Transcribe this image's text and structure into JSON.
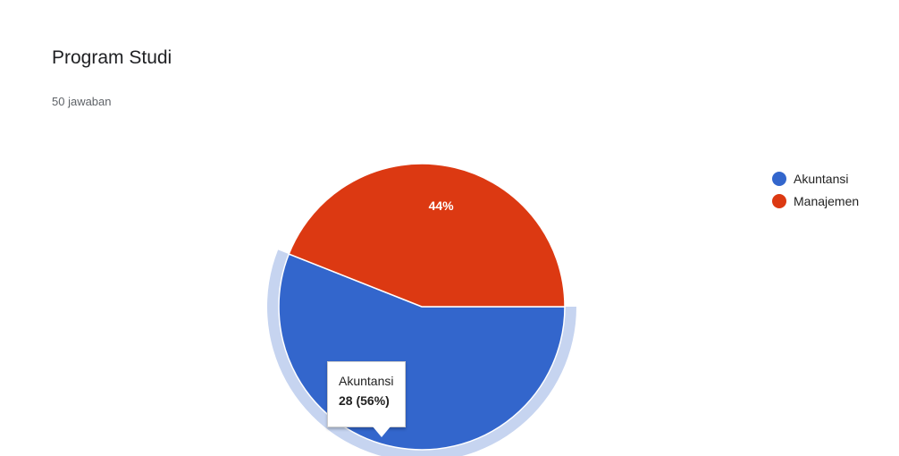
{
  "header": {
    "title": "Program Studi",
    "response_count": "50 jawaban"
  },
  "chart_data": {
    "type": "pie",
    "title": "Program Studi",
    "categories": [
      "Akuntansi",
      "Manajemen"
    ],
    "values": [
      28,
      22
    ],
    "percent_labels": [
      "56%",
      "44%"
    ],
    "colors": [
      "#3366cc",
      "#dc3912"
    ],
    "highlight_color": "#c6d4f0",
    "legend_position": "right",
    "highlighted_index": 0
  },
  "tooltip": {
    "category": "Akuntansi",
    "value_text": "28 (56%)"
  }
}
